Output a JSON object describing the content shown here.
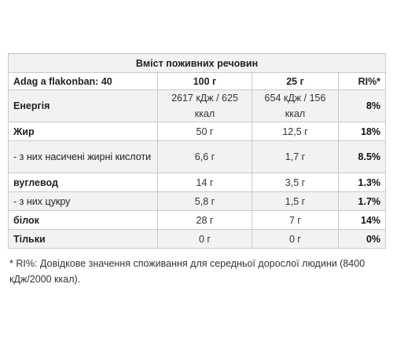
{
  "table": {
    "title": "Вміст поживних речовин",
    "header": {
      "label": "Adag a flakonban: 40",
      "col1": "100 г",
      "col2": "25 г",
      "col3": "RI%*"
    },
    "rows": [
      {
        "label": "Енергія",
        "v100": "2617 кДж / 625 ккал",
        "v25": "654 кДж / 156 ккал",
        "ri": "8%"
      },
      {
        "label": "Жир",
        "v100": "50 г",
        "v25": "12,5 г",
        "ri": "18%"
      },
      {
        "label": "- з них насичені жирні кислоти",
        "v100": "6,6 г",
        "v25": "1,7 г",
        "ri": "8.5%"
      },
      {
        "label": "вуглевод",
        "v100": "14 г",
        "v25": "3,5 г",
        "ri": "1.3%"
      },
      {
        "label": "- з них цукру",
        "v100": "5,8 г",
        "v25": "1,5 г",
        "ri": "1.7%"
      },
      {
        "label": "білок",
        "v100": "28 г",
        "v25": "7 г",
        "ri": "14%"
      },
      {
        "label": "Тільки",
        "v100": "0 г",
        "v25": "0 г",
        "ri": "0%"
      }
    ]
  },
  "footnote": "* RI%: Довідкове значення споживання для середньої дорослої людини (8400 кДж/2000 ккал)."
}
